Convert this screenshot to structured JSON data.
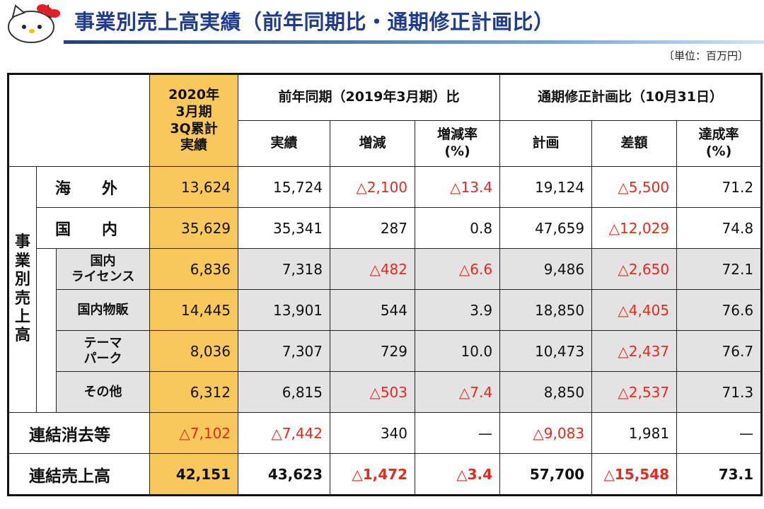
{
  "header": {
    "title": "事業別売上高実績（前年同期比・通期修正計画比）",
    "unit": "〔単位：百万円〕"
  },
  "table": {
    "current_header": "2020年\n3月期\n3Q累計\n実績",
    "groups": [
      "前年同期（2019年3月期）比",
      "通期修正計画比（10月31日）"
    ],
    "subheaders": [
      "実績",
      "増減",
      "増減率\n(%)",
      "計画",
      "差額",
      "達成率\n(%)"
    ],
    "side_label": "事業別売上高",
    "segments": [
      {
        "label": "海　　外",
        "values": [
          "13,624",
          "15,724",
          "△2,100",
          "△13.4",
          "19,124",
          "△5,500",
          "71.2"
        ]
      },
      {
        "label": "国　　内",
        "values": [
          "35,629",
          "35,341",
          "287",
          "0.8",
          "47,659",
          "△12,029",
          "74.8"
        ]
      }
    ],
    "domestic_items": [
      {
        "label": "国内\nライセンス",
        "values": [
          "6,836",
          "7,318",
          "△482",
          "△6.6",
          "9,486",
          "△2,650",
          "72.1"
        ]
      },
      {
        "label": "国内物販",
        "values": [
          "14,445",
          "13,901",
          "544",
          "3.9",
          "18,850",
          "△4,405",
          "76.6"
        ]
      },
      {
        "label": "テーマ\nパーク",
        "values": [
          "8,036",
          "7,307",
          "729",
          "10.0",
          "10,473",
          "△2,437",
          "76.7"
        ]
      },
      {
        "label": "その他",
        "values": [
          "6,312",
          "6,815",
          "△503",
          "△7.4",
          "8,850",
          "△2,537",
          "71.3"
        ]
      }
    ],
    "elimination": {
      "label": "連結消去等",
      "values": [
        "△7,102",
        "△7,442",
        "340",
        "—",
        "△9,083",
        "1,981",
        "—"
      ]
    },
    "total": {
      "label": "連結売上高",
      "values": [
        "42,151",
        "43,623",
        "△1,472",
        "△3.4",
        "57,700",
        "△15,548",
        "73.1"
      ]
    }
  }
}
